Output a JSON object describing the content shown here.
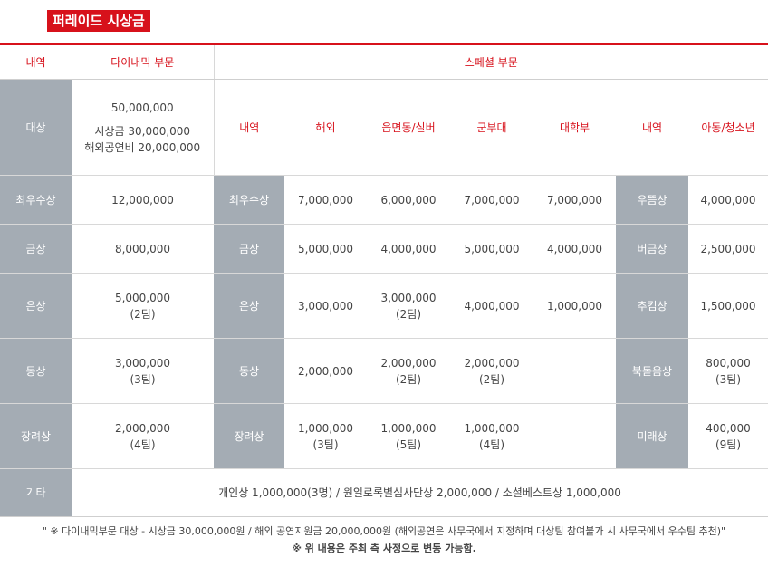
{
  "title": "퍼레이드 시상금",
  "headers": {
    "col_category": "내역",
    "dynamic_section": "다이내믹 부문",
    "special_section": "스페셜 부문"
  },
  "subheaders": [
    "내역",
    "해외",
    "읍면동/실버",
    "군부대",
    "대학부",
    "내역",
    "아동/청소년"
  ],
  "grand_prize": {
    "label": "대상",
    "total": "50,000,000",
    "line1": "시상금 30,000,000",
    "line2": "해외공연비 20,000,000"
  },
  "rows": [
    {
      "label": "최우수상",
      "dynamic": [
        "12,000,000"
      ],
      "special_label": "최우수상",
      "overseas": [
        "7,000,000"
      ],
      "rural": [
        "6,000,000"
      ],
      "military": [
        "7,000,000"
      ],
      "university": [
        "7,000,000"
      ],
      "youth_label": "우뜸상",
      "youth": [
        "4,000,000"
      ]
    },
    {
      "label": "금상",
      "dynamic": [
        "8,000,000"
      ],
      "special_label": "금상",
      "overseas": [
        "5,000,000"
      ],
      "rural": [
        "4,000,000"
      ],
      "military": [
        "5,000,000"
      ],
      "university": [
        "4,000,000"
      ],
      "youth_label": "버금상",
      "youth": [
        "2,500,000"
      ]
    },
    {
      "label": "은상",
      "dynamic": [
        "5,000,000",
        "(2팀)"
      ],
      "special_label": "은상",
      "overseas": [
        "3,000,000"
      ],
      "rural": [
        "3,000,000",
        "(2팀)"
      ],
      "military": [
        "4,000,000"
      ],
      "university": [
        "1,000,000"
      ],
      "youth_label": "추킴상",
      "youth": [
        "1,500,000"
      ]
    },
    {
      "label": "동상",
      "dynamic": [
        "3,000,000",
        "(3팀)"
      ],
      "special_label": "동상",
      "overseas": [
        "2,000,000"
      ],
      "rural": [
        "2,000,000",
        "(2팀)"
      ],
      "military": [
        "2,000,000",
        "(2팀)"
      ],
      "university": [],
      "youth_label": "북돋음상",
      "youth": [
        "800,000",
        "(3팀)"
      ]
    },
    {
      "label": "장려상",
      "dynamic": [
        "2,000,000",
        "(4팀)"
      ],
      "special_label": "장려상",
      "overseas": [
        "1,000,000",
        "(3팀)"
      ],
      "rural": [
        "1,000,000",
        "(5팀)"
      ],
      "military": [
        "1,000,000",
        "(4팀)"
      ],
      "university": [],
      "youth_label": "미래상",
      "youth": [
        "400,000",
        "(9팀)"
      ]
    }
  ],
  "other": {
    "label": "기타",
    "text": "개인상 1,000,000(3명) / 원일로록별심사단상 2,000,000 / 소셜베스트상 1,000,000"
  },
  "notes": {
    "line1": "\" ※ 다이내믹부문 대상 - 시상금 30,000,000원 / 해외 공연지원금 20,000,000원 (해외공연은 사무국에서 지정하며 대상팀 참여불가 시 사무국에서 우수팀 추천)\"",
    "line2": "※ 위 내용은 주최 측 사정으로 변동 가능함."
  },
  "colors": {
    "accent": "#d7111b",
    "grey_cell": "#a4acb4"
  }
}
